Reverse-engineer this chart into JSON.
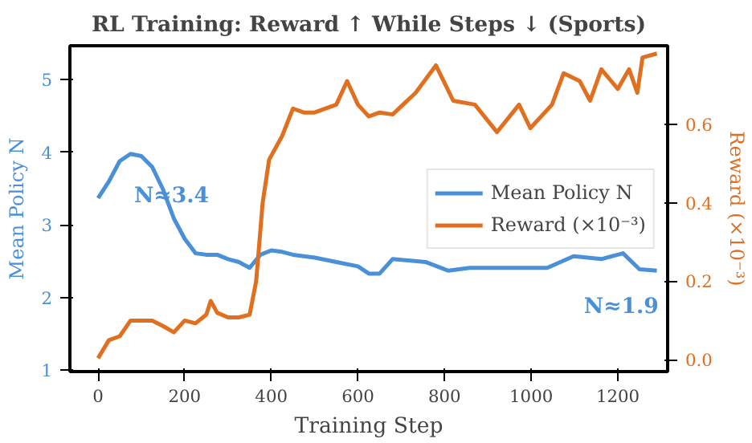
{
  "chart_data": {
    "type": "line",
    "title": "RL Training: Reward ↑ While Steps ↓ (Sports)",
    "xlabel": "Training Step",
    "ylabel": "Mean Policy N",
    "y2label": "Reward (×10⁻³)",
    "xlim": [
      -65,
      1315
    ],
    "xticks": [
      0,
      200,
      400,
      600,
      800,
      1000,
      1200
    ],
    "ylim": [
      0.98,
      5.47
    ],
    "yticks": [
      1,
      2,
      3,
      4,
      5
    ],
    "y2lim": [
      -0.03,
      0.8
    ],
    "y2ticks": [
      {
        "value": 0,
        "label": "0.0"
      },
      0.2,
      0.4,
      0.6
    ],
    "grid": false,
    "legend": "right",
    "series": [
      {
        "name": "Mean Policy N",
        "color": "#4a90d9",
        "x": [
          0,
          25,
          50,
          75,
          100,
          125,
          150,
          175,
          200,
          225,
          250,
          275,
          300,
          325,
          350,
          375,
          400,
          425,
          450,
          475,
          500,
          550,
          600,
          625,
          650,
          680,
          756,
          809,
          858,
          946,
          1037,
          1098,
          1162,
          1212,
          1250,
          1290
        ],
        "values": [
          3.37,
          3.6,
          3.88,
          3.98,
          3.95,
          3.8,
          3.49,
          3.09,
          2.81,
          2.61,
          2.59,
          2.59,
          2.53,
          2.49,
          2.41,
          2.59,
          2.65,
          2.63,
          2.59,
          2.57,
          2.55,
          2.49,
          2.43,
          2.33,
          2.33,
          2.53,
          2.49,
          2.37,
          2.41,
          2.41,
          2.41,
          2.57,
          2.53,
          2.61,
          2.39,
          2.37
        ]
      },
      {
        "name": "Reward (×10⁻³)",
        "color": "#e07020",
        "axis": "y2",
        "x": [
          0,
          25,
          50,
          75,
          100,
          125,
          150,
          175,
          200,
          225,
          250,
          260,
          275,
          300,
          325,
          350,
          365,
          380,
          395,
          425,
          450,
          475,
          500,
          550,
          575,
          600,
          625,
          650,
          680,
          733,
          780,
          820,
          870,
          921,
          972,
          998,
          1048,
          1075,
          1112,
          1136,
          1162,
          1200,
          1226,
          1245,
          1257,
          1290
        ],
        "values": [
          0.004,
          0.05,
          0.06,
          0.1,
          0.1,
          0.1,
          0.086,
          0.07,
          0.1,
          0.093,
          0.115,
          0.15,
          0.12,
          0.108,
          0.108,
          0.115,
          0.2,
          0.4,
          0.51,
          0.57,
          0.64,
          0.63,
          0.63,
          0.65,
          0.71,
          0.65,
          0.62,
          0.63,
          0.625,
          0.68,
          0.75,
          0.66,
          0.65,
          0.58,
          0.65,
          0.59,
          0.65,
          0.73,
          0.71,
          0.66,
          0.74,
          0.69,
          0.74,
          0.68,
          0.77,
          0.78
        ]
      }
    ],
    "annotations": [
      "N≈3.4",
      "N≈1.9"
    ]
  }
}
